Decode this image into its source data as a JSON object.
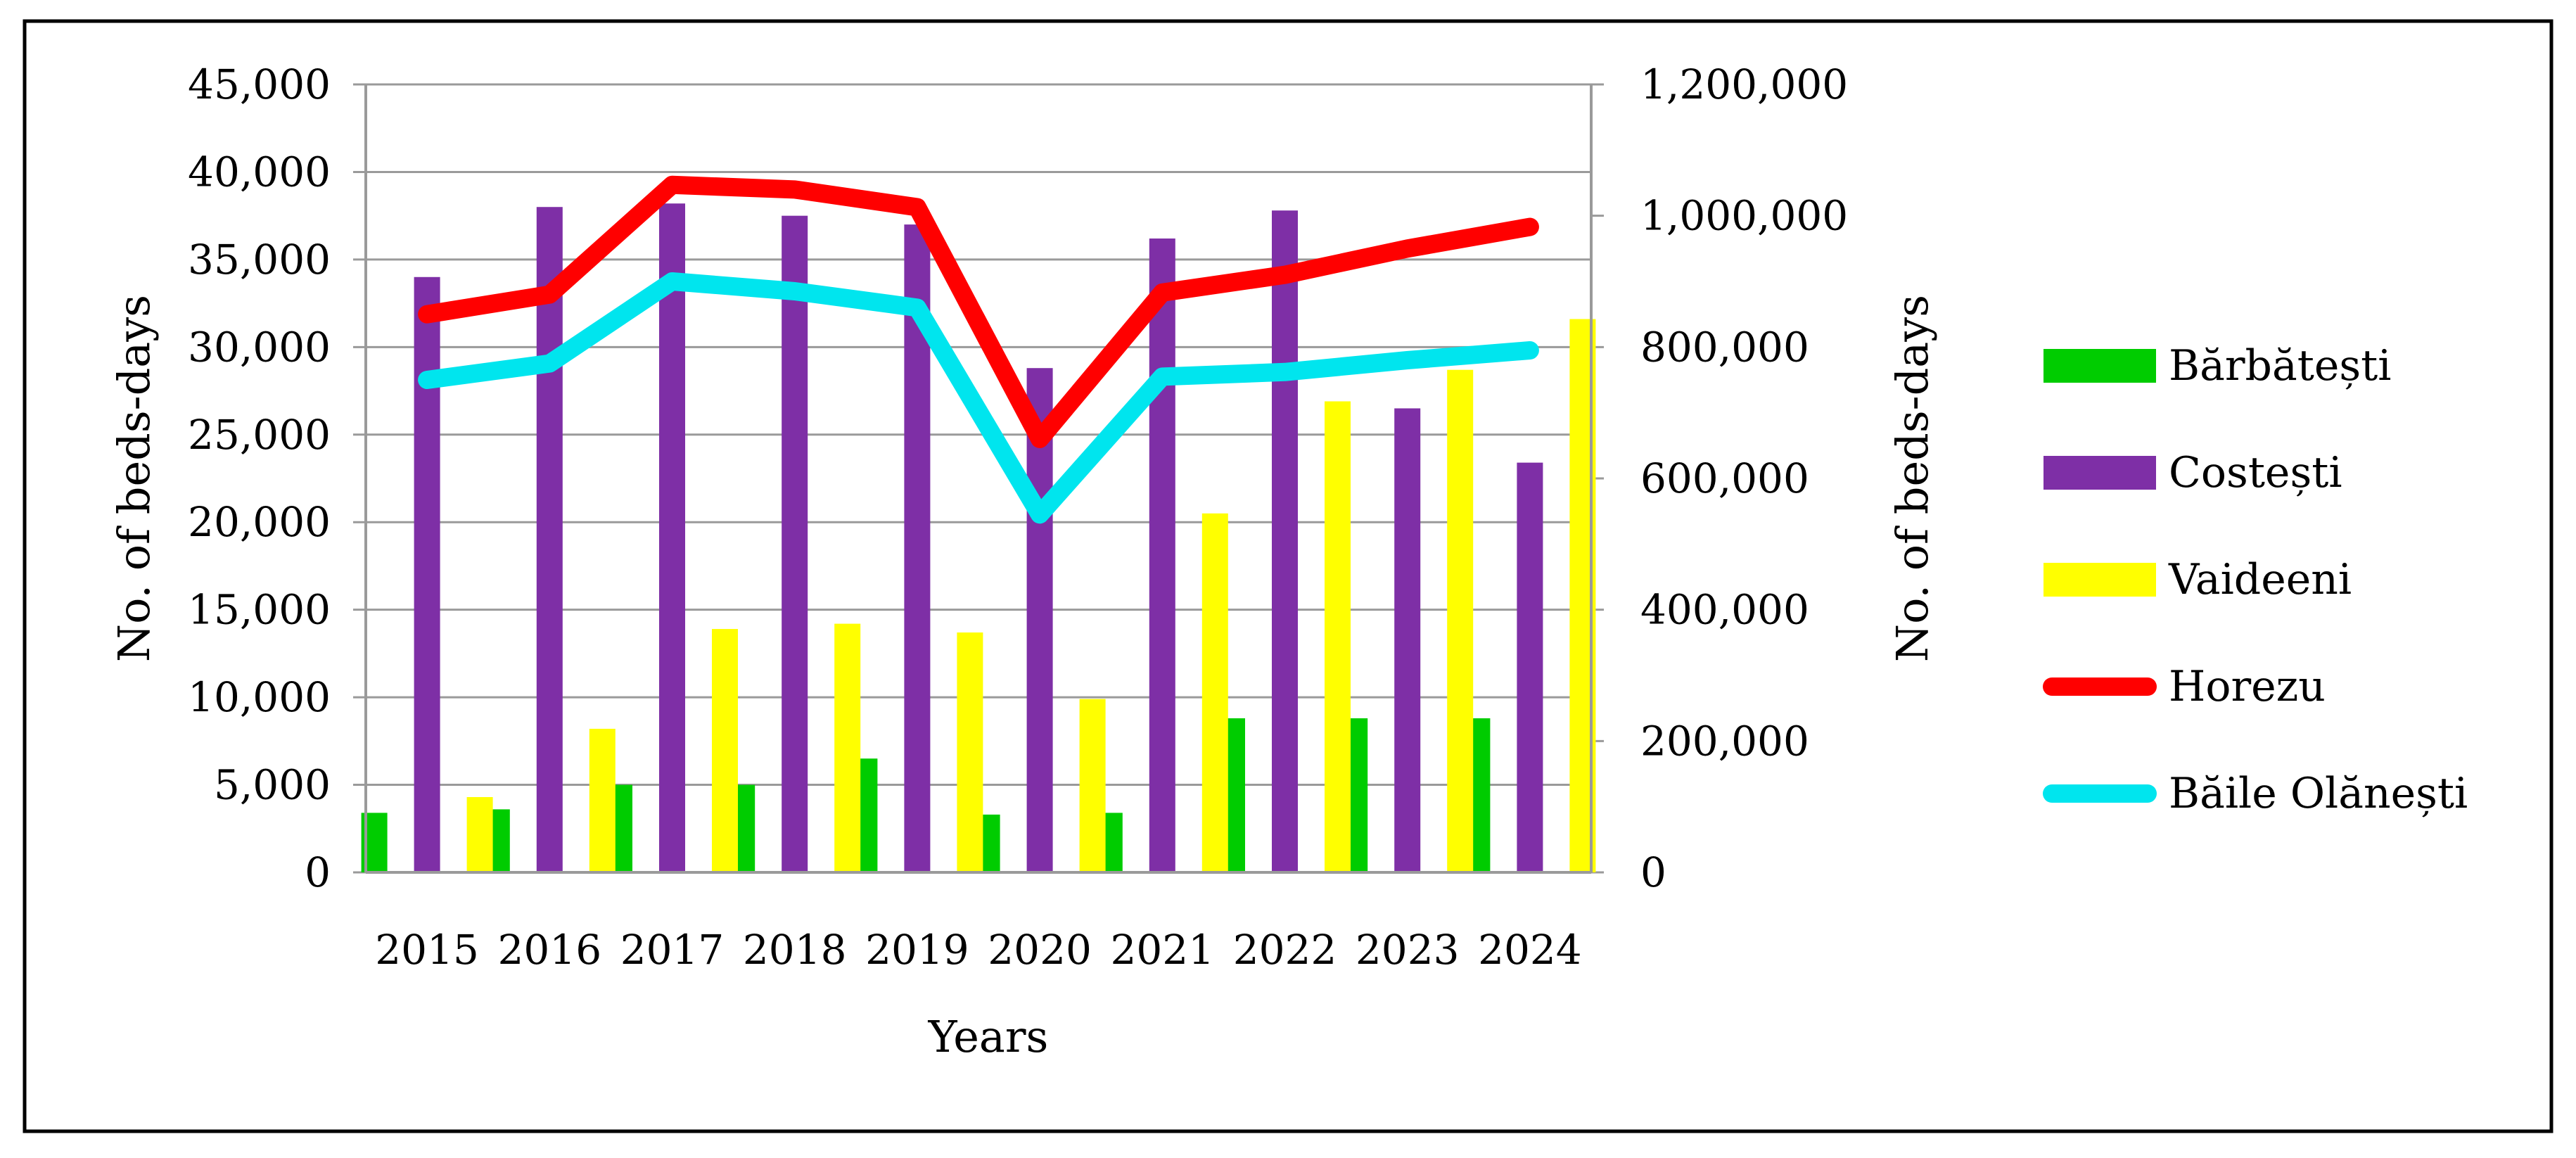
{
  "chart_data": {
    "type": "bar",
    "categories": [
      "2015",
      "2016",
      "2017",
      "2018",
      "2019",
      "2020",
      "2021",
      "2022",
      "2023",
      "2024"
    ],
    "xlabel": "Years",
    "ylabel": "No. of beds-days",
    "y2label": "No. of beds-days",
    "ylim": [
      0,
      45000
    ],
    "y2lim": [
      0,
      1200000
    ],
    "yticks": [
      0,
      5000,
      10000,
      15000,
      20000,
      25000,
      30000,
      35000,
      40000,
      45000
    ],
    "y2ticks": [
      0,
      200000,
      400000,
      600000,
      800000,
      1000000,
      1200000
    ],
    "ytick_labels": [
      "0",
      "5,000",
      "10,000",
      "15,000",
      "20,000",
      "25,000",
      "30,000",
      "35,000",
      "40,000",
      "45,000"
    ],
    "y2tick_labels": [
      "0",
      "200,000",
      "400,000",
      "600,000",
      "800,000",
      "1,000,000",
      "1,200,000"
    ],
    "grid": true,
    "legend_position": "right",
    "series": [
      {
        "name": "Bărbătești",
        "kind": "bar",
        "axis": "left",
        "color": "#00cc00",
        "values": [
          3400,
          3600,
          5000,
          5000,
          6500,
          3300,
          3400,
          8800,
          8800,
          8800
        ]
      },
      {
        "name": "Costești",
        "kind": "bar",
        "axis": "left",
        "color": "#7e2fa6",
        "values": [
          34000,
          38000,
          38200,
          37500,
          37000,
          28800,
          36200,
          37800,
          26500,
          23400
        ]
      },
      {
        "name": "Vaideeni",
        "kind": "bar",
        "axis": "left",
        "color": "#ffff00",
        "values": [
          4300,
          8200,
          13900,
          14200,
          13700,
          9900,
          20500,
          26900,
          28700,
          31600
        ]
      },
      {
        "name": "Horezu",
        "kind": "line",
        "axis": "right",
        "color": "#ff0000",
        "values": [
          850000,
          880000,
          1047000,
          1040000,
          1013000,
          660000,
          883000,
          910000,
          950000,
          983000
        ]
      },
      {
        "name": "Băile Olănești",
        "kind": "line",
        "axis": "right",
        "color": "#00e5ee",
        "values": [
          750000,
          775000,
          900000,
          885000,
          860000,
          545000,
          755000,
          762000,
          780000,
          795000
        ]
      }
    ]
  }
}
